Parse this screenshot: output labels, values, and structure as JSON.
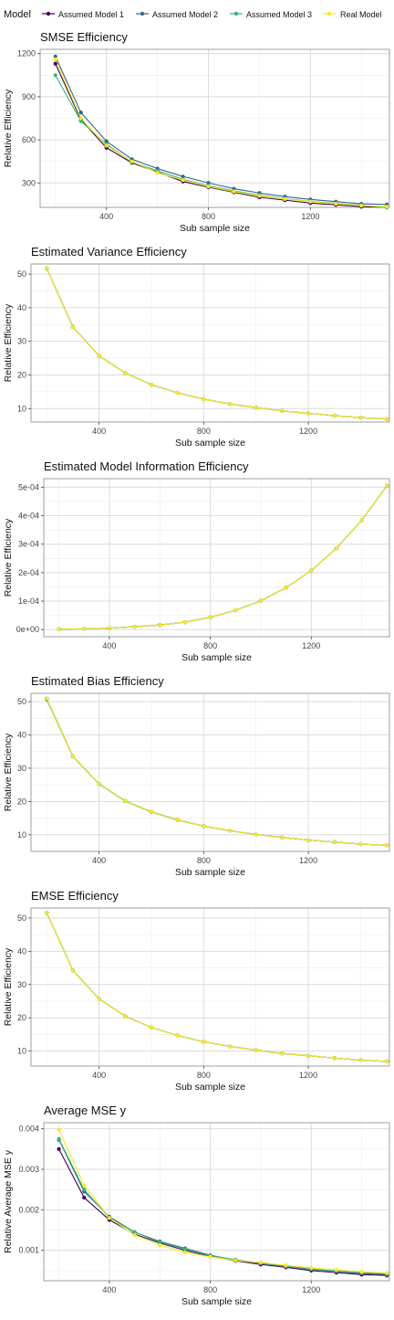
{
  "legend": {
    "title": "Model",
    "items": [
      {
        "label": "Assumed Model 1",
        "color": "#440154"
      },
      {
        "label": "Assumed Model 2",
        "color": "#31688e"
      },
      {
        "label": "Assumed Model 3",
        "color": "#35b779"
      },
      {
        "label": "Real Model",
        "color": "#fde725"
      }
    ]
  },
  "chart_data": [
    {
      "type": "line",
      "title": "SMSE Efficiency",
      "xlabel": "Sub sample size",
      "ylabel": "Relative Efficiency",
      "xlim": [
        140,
        1510
      ],
      "ylim": [
        130,
        1230
      ],
      "xticks": [
        400,
        800,
        1200
      ],
      "yticks": [
        300,
        600,
        900,
        1200
      ],
      "ytick_labels": [
        "300",
        "600",
        "900",
        "1200"
      ],
      "x": [
        200,
        300,
        400,
        500,
        600,
        700,
        800,
        900,
        1000,
        1100,
        1200,
        1300,
        1400,
        1500
      ],
      "series": [
        {
          "name": "Assumed Model 1",
          "color": "#440154",
          "values": [
            1130,
            740,
            545,
            440,
            375,
            310,
            270,
            235,
            200,
            180,
            160,
            148,
            135,
            130
          ]
        },
        {
          "name": "Assumed Model 2",
          "color": "#31688e",
          "values": [
            1180,
            790,
            590,
            465,
            400,
            345,
            300,
            260,
            230,
            205,
            185,
            170,
            155,
            150
          ]
        },
        {
          "name": "Assumed Model 3",
          "color": "#35b779",
          "values": [
            1050,
            730,
            570,
            445,
            385,
            325,
            280,
            245,
            215,
            190,
            172,
            158,
            145,
            128
          ]
        },
        {
          "name": "Real Model",
          "color": "#fde725",
          "values": [
            1160,
            750,
            560,
            450,
            370,
            320,
            275,
            240,
            210,
            188,
            170,
            155,
            142,
            135
          ]
        }
      ]
    },
    {
      "type": "line",
      "title": "Estimated Variance Efficiency",
      "xlabel": "Sub sample size",
      "ylabel": "Relative Efficiency",
      "xlim": [
        140,
        1510
      ],
      "ylim": [
        6,
        53
      ],
      "xticks": [
        400,
        800,
        1200
      ],
      "yticks": [
        10,
        20,
        30,
        40,
        50
      ],
      "ytick_labels": [
        "10",
        "20",
        "30",
        "40",
        "50"
      ],
      "x": [
        200,
        300,
        400,
        500,
        600,
        700,
        800,
        900,
        1000,
        1100,
        1200,
        1300,
        1400,
        1500
      ],
      "series": [
        {
          "name": "Assumed Model 1",
          "color": "#440154",
          "values": [
            51.7,
            34.3,
            25.7,
            20.6,
            17.1,
            14.7,
            12.8,
            11.4,
            10.3,
            9.3,
            8.6,
            7.9,
            7.3,
            6.9
          ]
        },
        {
          "name": "Assumed Model 2",
          "color": "#31688e",
          "values": [
            51.7,
            34.3,
            25.7,
            20.6,
            17.1,
            14.7,
            12.8,
            11.4,
            10.3,
            9.3,
            8.6,
            7.9,
            7.3,
            6.9
          ]
        },
        {
          "name": "Assumed Model 3",
          "color": "#35b779",
          "values": [
            51.7,
            34.3,
            25.7,
            20.6,
            17.1,
            14.7,
            12.8,
            11.4,
            10.3,
            9.3,
            8.6,
            7.9,
            7.3,
            6.9
          ]
        },
        {
          "name": "Real Model",
          "color": "#fde725",
          "values": [
            51.7,
            34.3,
            25.7,
            20.6,
            17.1,
            14.7,
            12.8,
            11.4,
            10.3,
            9.3,
            8.6,
            7.9,
            7.3,
            6.9
          ]
        }
      ]
    },
    {
      "type": "line",
      "title": "Estimated Model Information Efficiency",
      "xlabel": "Sub sample size",
      "ylabel": "Relative Efficiency",
      "xlim": [
        140,
        1510
      ],
      "ylim": [
        -2.5e-05,
        0.00053
      ],
      "xticks": [
        400,
        800,
        1200
      ],
      "yticks": [
        0,
        0.0001,
        0.0002,
        0.0003,
        0.0004,
        0.0005
      ],
      "ytick_labels": [
        "0e+00",
        "1e-04",
        "2e-04",
        "3e-04",
        "4e-04",
        "5e-04"
      ],
      "x": [
        200,
        300,
        400,
        500,
        600,
        700,
        800,
        900,
        1000,
        1100,
        1200,
        1300,
        1400,
        1500
      ],
      "series": [
        {
          "name": "Assumed Model 1",
          "color": "#440154",
          "values": [
            1.5e-06,
            2.5e-06,
            5e-06,
            1e-05,
            1.6e-05,
            2.6e-05,
            4.3e-05,
            6.8e-05,
            0.000101,
            0.000147,
            0.000207,
            0.000286,
            0.000384,
            0.000505
          ]
        },
        {
          "name": "Assumed Model 2",
          "color": "#31688e",
          "values": [
            1.5e-06,
            2.5e-06,
            5e-06,
            1e-05,
            1.6e-05,
            2.6e-05,
            4.3e-05,
            6.8e-05,
            0.000101,
            0.000147,
            0.000207,
            0.000286,
            0.000384,
            0.000505
          ]
        },
        {
          "name": "Assumed Model 3",
          "color": "#35b779",
          "values": [
            1.5e-06,
            2.5e-06,
            5e-06,
            1e-05,
            1.6e-05,
            2.6e-05,
            4.3e-05,
            6.8e-05,
            0.000101,
            0.000147,
            0.000207,
            0.000286,
            0.000384,
            0.000505
          ]
        },
        {
          "name": "Real Model",
          "color": "#fde725",
          "values": [
            1.5e-06,
            2.5e-06,
            5e-06,
            1e-05,
            1.6e-05,
            2.6e-05,
            4.3e-05,
            6.8e-05,
            0.000101,
            0.000147,
            0.000207,
            0.000286,
            0.000384,
            0.000505
          ]
        }
      ]
    },
    {
      "type": "line",
      "title": "Estimated Bias Efficiency",
      "xlabel": "Sub sample size",
      "ylabel": "Relative Efficiency",
      "xlim": [
        140,
        1510
      ],
      "ylim": [
        5,
        52.5
      ],
      "xticks": [
        400,
        800,
        1200
      ],
      "yticks": [
        10,
        20,
        30,
        40,
        50
      ],
      "ytick_labels": [
        "10",
        "20",
        "30",
        "40",
        "50"
      ],
      "x": [
        200,
        300,
        400,
        500,
        600,
        700,
        800,
        900,
        1000,
        1100,
        1200,
        1300,
        1400,
        1500
      ],
      "series": [
        {
          "name": "Assumed Model 1",
          "color": "#440154",
          "values": [
            50.9,
            33.6,
            25.3,
            20.2,
            16.9,
            14.5,
            12.6,
            11.2,
            10.1,
            9.2,
            8.4,
            7.8,
            7.2,
            6.8
          ]
        },
        {
          "name": "Assumed Model 2",
          "color": "#31688e",
          "values": [
            50.9,
            33.6,
            25.3,
            20.2,
            16.9,
            14.5,
            12.6,
            11.2,
            10.1,
            9.2,
            8.4,
            7.8,
            7.2,
            6.8
          ]
        },
        {
          "name": "Assumed Model 3",
          "color": "#35b779",
          "values": [
            50.6,
            33.5,
            25.2,
            20.1,
            16.8,
            14.4,
            12.6,
            11.2,
            10.1,
            9.2,
            8.4,
            7.8,
            7.2,
            6.8
          ]
        },
        {
          "name": "Real Model",
          "color": "#fde725",
          "values": [
            50.9,
            33.6,
            25.3,
            20.2,
            16.9,
            14.5,
            12.6,
            11.2,
            10.1,
            9.2,
            8.4,
            7.8,
            7.2,
            6.8
          ]
        }
      ]
    },
    {
      "type": "line",
      "title": "EMSE Efficiency",
      "xlabel": "Sub sample size",
      "ylabel": "Relative Efficiency",
      "xlim": [
        140,
        1510
      ],
      "ylim": [
        5.5,
        53
      ],
      "xticks": [
        400,
        800,
        1200
      ],
      "yticks": [
        10,
        20,
        30,
        40,
        50
      ],
      "ytick_labels": [
        "10",
        "20",
        "30",
        "40",
        "50"
      ],
      "x": [
        200,
        300,
        400,
        500,
        600,
        700,
        800,
        900,
        1000,
        1100,
        1200,
        1300,
        1400,
        1500
      ],
      "series": [
        {
          "name": "Assumed Model 1",
          "color": "#440154",
          "values": [
            51.6,
            34.3,
            25.7,
            20.5,
            17.1,
            14.7,
            12.8,
            11.4,
            10.3,
            9.3,
            8.6,
            7.9,
            7.3,
            6.9
          ]
        },
        {
          "name": "Assumed Model 2",
          "color": "#31688e",
          "values": [
            51.6,
            34.3,
            25.7,
            20.5,
            17.1,
            14.7,
            12.8,
            11.4,
            10.3,
            9.3,
            8.6,
            7.9,
            7.3,
            6.9
          ]
        },
        {
          "name": "Assumed Model 3",
          "color": "#35b779",
          "values": [
            51.6,
            34.3,
            25.7,
            20.5,
            17.1,
            14.7,
            12.8,
            11.4,
            10.3,
            9.3,
            8.6,
            7.9,
            7.3,
            6.9
          ]
        },
        {
          "name": "Real Model",
          "color": "#fde725",
          "values": [
            51.6,
            34.3,
            25.7,
            20.5,
            17.1,
            14.7,
            12.8,
            11.4,
            10.3,
            9.3,
            8.6,
            7.9,
            7.3,
            6.9
          ]
        }
      ]
    },
    {
      "type": "line",
      "title": "Average MSE y",
      "xlabel": "Sub sample size",
      "ylabel": "Relative Average MSE y",
      "xlim": [
        140,
        1510
      ],
      "ylim": [
        0.00025,
        0.00415
      ],
      "xticks": [
        400,
        800,
        1200
      ],
      "yticks": [
        0.001,
        0.002,
        0.003,
        0.004
      ],
      "ytick_labels": [
        "0.001",
        "0.002",
        "0.003",
        "0.004"
      ],
      "x": [
        200,
        300,
        400,
        500,
        600,
        700,
        800,
        900,
        1000,
        1100,
        1200,
        1300,
        1400,
        1500
      ],
      "series": [
        {
          "name": "Assumed Model 1",
          "color": "#440154",
          "values": [
            0.0035,
            0.0023,
            0.00175,
            0.0014,
            0.00118,
            0.001,
            0.00085,
            0.00074,
            0.00065,
            0.00058,
            0.0005,
            0.00045,
            0.0004,
            0.00038
          ]
        },
        {
          "name": "Assumed Model 2",
          "color": "#31688e",
          "values": [
            0.00373,
            0.00245,
            0.00183,
            0.00145,
            0.00122,
            0.00105,
            0.00088,
            0.00076,
            0.00068,
            0.0006,
            0.00053,
            0.00048,
            0.00043,
            0.0004
          ]
        },
        {
          "name": "Assumed Model 3",
          "color": "#35b779",
          "values": [
            0.00375,
            0.0025,
            0.0018,
            0.00145,
            0.0012,
            0.00103,
            0.00087,
            0.00077,
            0.00069,
            0.00061,
            0.00054,
            0.00049,
            0.00045,
            0.00042
          ]
        },
        {
          "name": "Real Model",
          "color": "#fde725",
          "values": [
            0.00398,
            0.0026,
            0.0018,
            0.00138,
            0.00113,
            0.00095,
            0.00084,
            0.00075,
            0.0007,
            0.00063,
            0.00057,
            0.00052,
            0.00047,
            0.00044
          ]
        }
      ]
    }
  ]
}
